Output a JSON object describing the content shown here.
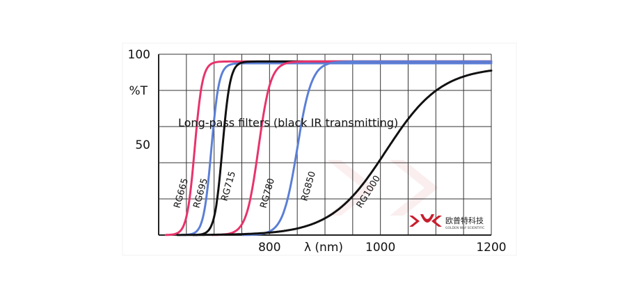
{
  "chart_data": {
    "type": "line",
    "title": "",
    "annotation": "Long-pass filters (black IR transmitting)",
    "xlabel": "λ (nm)",
    "ylabel": "%T",
    "xlim": [
      600,
      1200
    ],
    "ylim": [
      0,
      100
    ],
    "x_tick_labels": [
      "800",
      "1000",
      "1200"
    ],
    "y_tick_labels": [
      "100",
      "50"
    ],
    "grid": true,
    "series": [
      {
        "name": "RG665",
        "color": "#e8336b",
        "cut_on": 665,
        "steepness": 7,
        "max": 96
      },
      {
        "name": "RG695",
        "color": "#5b7fd6",
        "cut_on": 695,
        "steepness": 7,
        "max": 95
      },
      {
        "name": "RG715",
        "color": "#111111",
        "cut_on": 715,
        "steepness": 7,
        "max": 96
      },
      {
        "name": "RG780",
        "color": "#e8336b",
        "cut_on": 780,
        "steepness": 11,
        "max": 96
      },
      {
        "name": "RG850",
        "color": "#5b7fd6",
        "cut_on": 850,
        "steepness": 13,
        "max": 96
      },
      {
        "name": "RG1000",
        "color": "#111111",
        "cut_on": 1010,
        "steepness": 50,
        "max": 93
      }
    ]
  },
  "logo": {
    "name": "欧普特科技",
    "sub": "GOLDEN WAY SCIENTIFIC",
    "color": "#c81e2e"
  }
}
